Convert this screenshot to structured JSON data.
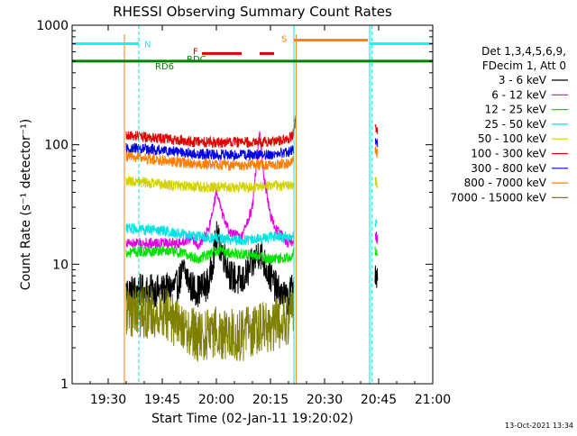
{
  "chart_data": {
    "type": "line",
    "title": "RHESSI Observing Summary Count Rates",
    "xlabel": "Start Time (02-Jan-11 19:20:02)",
    "ylabel": "Count Rate (s⁻¹ detector⁻¹)",
    "yscale": "log",
    "ylim": [
      1,
      1000
    ],
    "xlim_minutes": [
      0,
      100
    ],
    "x_ticks": [
      {
        "t": 10,
        "label": "19:30"
      },
      {
        "t": 25,
        "label": "19:45"
      },
      {
        "t": 40,
        "label": "20:00"
      },
      {
        "t": 55,
        "label": "20:15"
      },
      {
        "t": 70,
        "label": "20:30"
      },
      {
        "t": 85,
        "label": "20:45"
      },
      {
        "t": 100,
        "label": "21:00"
      }
    ],
    "y_ticks": [
      {
        "v": 1,
        "label": "1"
      },
      {
        "v": 10,
        "label": "10"
      },
      {
        "v": 100,
        "label": "100"
      },
      {
        "v": 1000,
        "label": "1000"
      }
    ],
    "legend_header": [
      "Det 1,3,4,5,6,9,",
      "FDecim 1, Att 0"
    ],
    "series": [
      {
        "name": "3 - 6 keV",
        "color": "#000000"
      },
      {
        "name": "6 - 12 keV",
        "color": "#e100e1"
      },
      {
        "name": "12 - 25 keV",
        "color": "#00e100"
      },
      {
        "name": "25 - 50 keV",
        "color": "#00e1e1"
      },
      {
        "name": "50 - 100 keV",
        "color": "#d2d200"
      },
      {
        "name": "100 - 300 keV",
        "color": "#e10000"
      },
      {
        "name": "300 - 800 keV",
        "color": "#0000e1"
      },
      {
        "name": "800 - 7000 keV",
        "color": "#ff8000"
      },
      {
        "name": "7000 - 15000 keV",
        "color": "#808000"
      }
    ],
    "series_profiles": [
      {
        "series": 0,
        "segments": [
          [
            [
              15,
              6
            ],
            [
              25,
              6
            ],
            [
              29,
              6.5
            ],
            [
              31,
              9
            ],
            [
              33,
              6.5
            ],
            [
              35,
              6
            ],
            [
              38,
              7
            ],
            [
              40,
              17
            ],
            [
              42,
              12
            ],
            [
              44,
              8
            ],
            [
              47,
              7
            ],
            [
              50,
              10
            ],
            [
              52,
              13
            ],
            [
              54,
              9
            ],
            [
              57,
              6
            ],
            [
              60,
              5
            ],
            [
              61,
              6.5
            ],
            [
              61.5,
              8
            ]
          ],
          [
            [
              84,
              8.5
            ],
            [
              84.7,
              7
            ]
          ]
        ]
      },
      {
        "series": 1,
        "segments": [
          [
            [
              15,
              15
            ],
            [
              25,
              15
            ],
            [
              30,
              15
            ],
            [
              33,
              17
            ],
            [
              35,
              14
            ],
            [
              38,
              20
            ],
            [
              40,
              40
            ],
            [
              42,
              24
            ],
            [
              44,
              18
            ],
            [
              47,
              17
            ],
            [
              50,
              30
            ],
            [
              52,
              135
            ],
            [
              53,
              60
            ],
            [
              55,
              25
            ],
            [
              57,
              19
            ],
            [
              60,
              15
            ],
            [
              61.5,
              16
            ]
          ],
          [
            [
              84,
              18
            ],
            [
              84.7,
              16
            ]
          ]
        ]
      },
      {
        "series": 2,
        "segments": [
          [
            [
              15,
              12.5
            ],
            [
              25,
              13
            ],
            [
              30,
              12.5
            ],
            [
              35,
              11
            ],
            [
              40,
              13
            ],
            [
              44,
              12.5
            ],
            [
              50,
              12
            ],
            [
              55,
              11
            ],
            [
              60,
              11.5
            ],
            [
              61.5,
              12.5
            ]
          ],
          [
            [
              84,
              13
            ],
            [
              84.7,
              12
            ]
          ]
        ]
      },
      {
        "series": 3,
        "segments": [
          [
            [
              15,
              20
            ],
            [
              25,
              19
            ],
            [
              30,
              18
            ],
            [
              35,
              17
            ],
            [
              40,
              16.5
            ],
            [
              45,
              16
            ],
            [
              50,
              16
            ],
            [
              55,
              17
            ],
            [
              60,
              17
            ],
            [
              61.5,
              18
            ]
          ],
          [
            [
              84,
              23
            ],
            [
              84.7,
              21
            ]
          ]
        ]
      },
      {
        "series": 4,
        "segments": [
          [
            [
              15,
              50
            ],
            [
              25,
              47
            ],
            [
              30,
              45
            ],
            [
              40,
              44
            ],
            [
              50,
              44
            ],
            [
              55,
              45
            ],
            [
              60,
              46
            ],
            [
              61.5,
              46
            ]
          ],
          [
            [
              84,
              50
            ],
            [
              84.7,
              48
            ]
          ]
        ]
      },
      {
        "series": 5,
        "segments": [
          [
            [
              15,
              120
            ],
            [
              25,
              112
            ],
            [
              35,
              105
            ],
            [
              45,
              104
            ],
            [
              55,
              106
            ],
            [
              60,
              112
            ],
            [
              61.5,
              125
            ],
            [
              62,
              180
            ]
          ],
          [
            [
              84,
              150
            ],
            [
              84.7,
              130
            ]
          ]
        ]
      },
      {
        "series": 6,
        "segments": [
          [
            [
              15,
              95
            ],
            [
              25,
              90
            ],
            [
              35,
              84
            ],
            [
              45,
              82
            ],
            [
              55,
              83
            ],
            [
              60,
              87
            ],
            [
              61.5,
              92
            ]
          ],
          [
            [
              84,
              115
            ],
            [
              84.7,
              105
            ]
          ]
        ]
      },
      {
        "series": 7,
        "segments": [
          [
            [
              15,
              80
            ],
            [
              25,
              74
            ],
            [
              35,
              69
            ],
            [
              45,
              67
            ],
            [
              55,
              68
            ],
            [
              60,
              70
            ],
            [
              61.5,
              74
            ]
          ],
          [
            [
              84,
              90
            ],
            [
              84.7,
              85
            ]
          ]
        ]
      },
      {
        "series": 8,
        "segments": [
          [
            [
              15,
              4
            ],
            [
              25,
              4
            ],
            [
              30,
              3
            ],
            [
              35,
              2.5
            ],
            [
              40,
              2.7
            ],
            [
              45,
              2.5
            ],
            [
              50,
              2.7
            ],
            [
              55,
              3
            ],
            [
              60,
              3.5
            ],
            [
              61.5,
              4
            ]
          ]
        ]
      }
    ],
    "flag_bars": [
      {
        "label": "N",
        "color": "#00ffff",
        "y": 700,
        "segments": [
          [
            0,
            18.5
          ],
          [
            82.5,
            100
          ]
        ]
      },
      {
        "label": "S",
        "color": "#ff8000",
        "y": 750,
        "segments": [
          [
            61.5,
            82
          ]
        ]
      },
      {
        "label": "F",
        "color": "#e10000",
        "y": 580,
        "segments": [
          [
            36,
            47
          ],
          [
            52,
            56
          ]
        ]
      },
      {
        "label": "RD6",
        "color": "#008000",
        "y": 500,
        "segments": [
          [
            0,
            100
          ]
        ]
      }
    ],
    "flag_text_labels": [
      {
        "text": "RDC",
        "color": "#008000"
      },
      {
        "text": "RD6",
        "color": "#008000"
      }
    ],
    "night_lines": {
      "solid": [
        0,
        61.5,
        82.5
      ],
      "dashed": [
        18.5,
        83.2,
        100
      ]
    },
    "attenuator_lines": [
      14.5,
      62.1
    ]
  },
  "footer": {
    "timestamp": "13-Oct-2021 13:34"
  }
}
